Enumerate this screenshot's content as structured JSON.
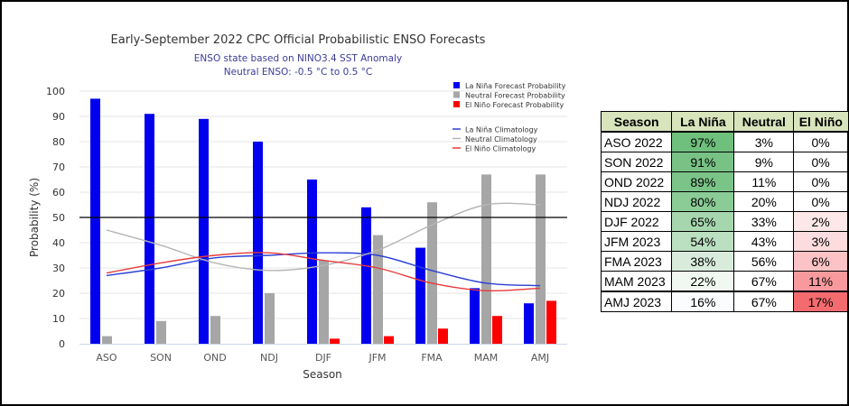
{
  "chart_data": {
    "type": "bar",
    "title": "Early-September 2022 CPC Official Probabilistic ENSO Forecasts",
    "subtitle": [
      "ENSO state based on NINO3.4 SST Anomaly",
      "Neutral ENSO: -0.5 °C to 0.5 °C"
    ],
    "xlabel": "Season",
    "ylabel": "Probability (%)",
    "ylim": [
      0,
      100
    ],
    "yticks": [
      0,
      10,
      20,
      30,
      40,
      50,
      60,
      70,
      80,
      90,
      100
    ],
    "grid": true,
    "reference_line": 50,
    "legend_position": "top-right",
    "categories": [
      "ASO",
      "SON",
      "OND",
      "NDJ",
      "DJF",
      "JFM",
      "FMA",
      "MAM",
      "AMJ"
    ],
    "series": [
      {
        "name": "La Niña Forecast Probability",
        "kind": "bar",
        "color": "#0000ee",
        "values": [
          97,
          91,
          89,
          80,
          65,
          54,
          38,
          22,
          16
        ]
      },
      {
        "name": "Neutral Forecast Probability",
        "kind": "bar",
        "color": "#a6a6a6",
        "values": [
          3,
          9,
          11,
          20,
          33,
          43,
          56,
          67,
          67
        ]
      },
      {
        "name": "El Niño Forecast Probability",
        "kind": "bar",
        "color": "#ff0000",
        "values": [
          0,
          0,
          0,
          0,
          2,
          3,
          6,
          11,
          17
        ]
      },
      {
        "name": "La Niña Climatology",
        "kind": "line",
        "color": "#2a3fd6",
        "values": [
          27,
          30,
          34,
          35,
          36,
          35,
          29,
          24,
          23
        ]
      },
      {
        "name": "Neutral Climatology",
        "kind": "line",
        "color": "#b5b5b5",
        "values": [
          45,
          39,
          32,
          29,
          31,
          37,
          47,
          55,
          55
        ]
      },
      {
        "name": "El Niño Climatology",
        "kind": "line",
        "color": "#e83a3a",
        "values": [
          28,
          32,
          35,
          36,
          33,
          30,
          24,
          21,
          22
        ]
      }
    ]
  },
  "table": {
    "headers": [
      "Season",
      "La Niña",
      "Neutral",
      "El Niño"
    ],
    "rows": [
      {
        "season": "ASO 2022",
        "la_nina": "97%",
        "neutral": "3%",
        "el_nino": "0%",
        "ln_color": "#6fbf7d",
        "en_color": "#ffffff"
      },
      {
        "season": "SON 2022",
        "la_nina": "91%",
        "neutral": "9%",
        "el_nino": "0%",
        "ln_color": "#78c285",
        "en_color": "#ffffff"
      },
      {
        "season": "OND 2022",
        "la_nina": "89%",
        "neutral": "11%",
        "el_nino": "0%",
        "ln_color": "#7bc488",
        "en_color": "#ffffff"
      },
      {
        "season": "NDJ 2022",
        "la_nina": "80%",
        "neutral": "20%",
        "el_nino": "0%",
        "ln_color": "#8bcb96",
        "en_color": "#ffffff"
      },
      {
        "season": "DJF 2022",
        "la_nina": "65%",
        "neutral": "33%",
        "el_nino": "2%",
        "ln_color": "#a6d6ae",
        "en_color": "#fde8e9"
      },
      {
        "season": "JFM 2023",
        "la_nina": "54%",
        "neutral": "43%",
        "el_nino": "3%",
        "ln_color": "#bbdfc1",
        "en_color": "#fcdcdd"
      },
      {
        "season": "FMA 2023",
        "la_nina": "38%",
        "neutral": "56%",
        "el_nino": "6%",
        "ln_color": "#d9ecdc",
        "en_color": "#fbc3c5"
      },
      {
        "season": "MAM 2023",
        "la_nina": "22%",
        "neutral": "67%",
        "el_nino": "11%",
        "ln_color": "#f1f8f2",
        "en_color": "#f89a9d"
      },
      {
        "season": "AMJ 2023",
        "la_nina": "16%",
        "neutral": "67%",
        "el_nino": "17%",
        "ln_color": "#fafcfd",
        "en_color": "#f46b6f"
      }
    ]
  }
}
